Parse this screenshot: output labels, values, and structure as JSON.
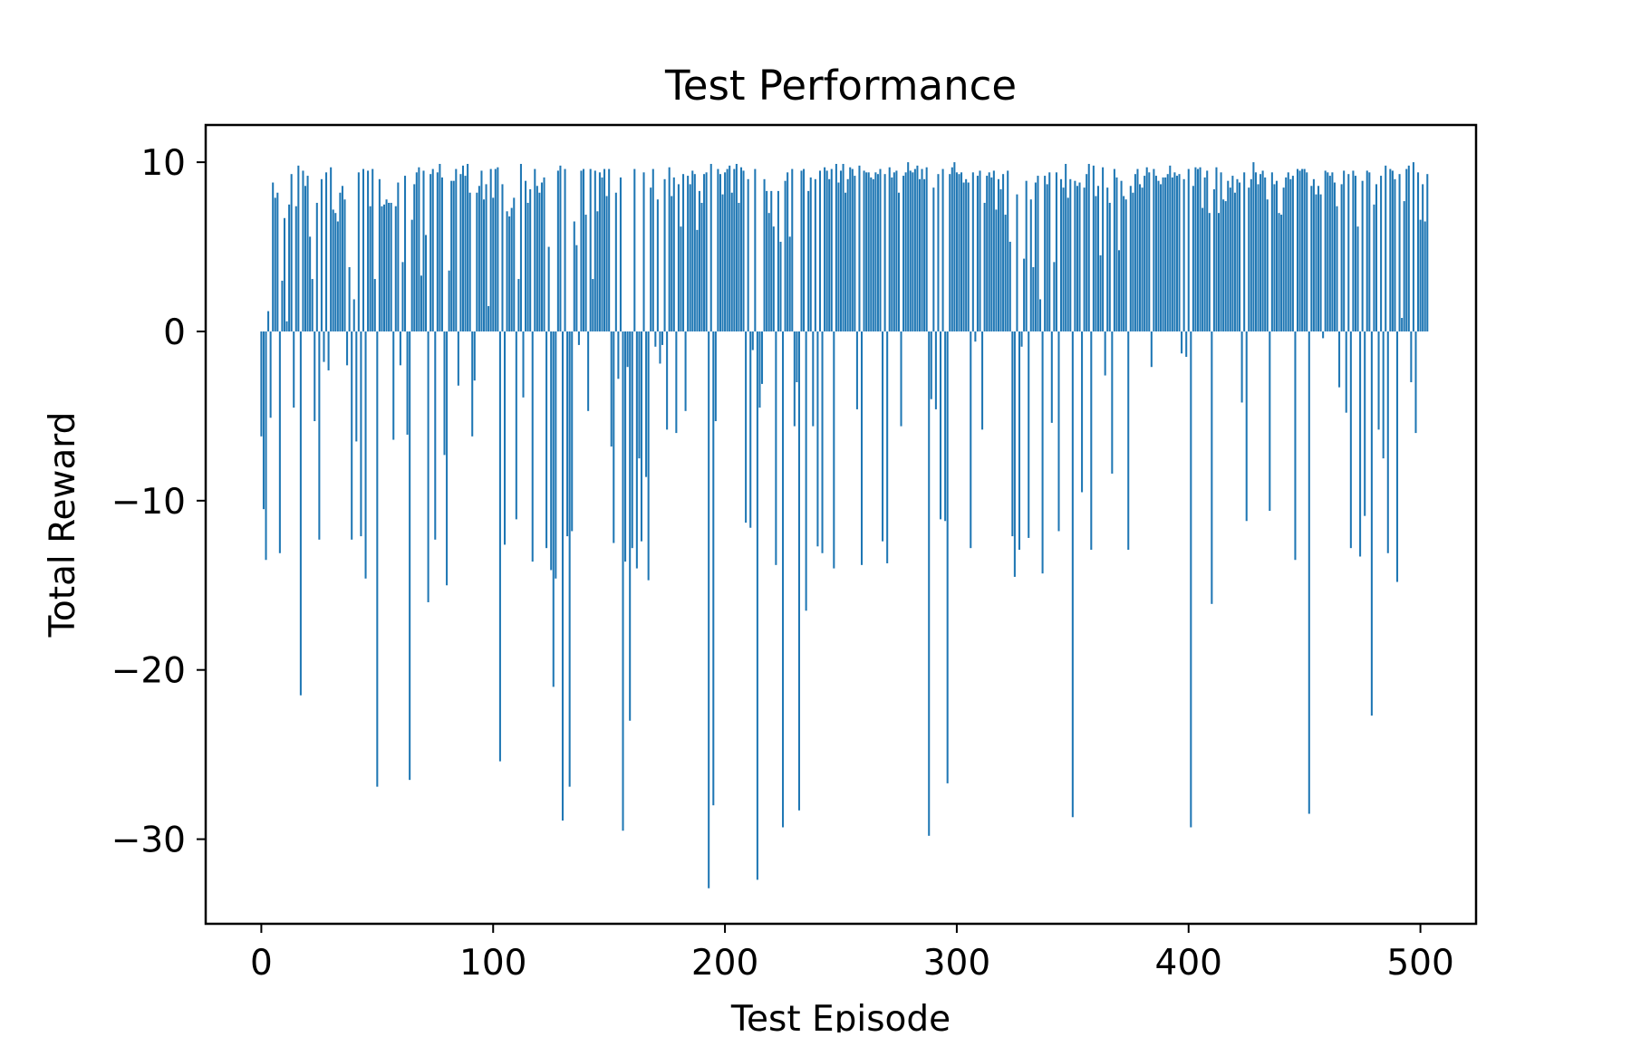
{
  "chart_data": {
    "type": "bar",
    "title": "Test Performance",
    "xlabel": "Test Episode",
    "ylabel": "Total Reward",
    "xlim": [
      -24,
      524
    ],
    "ylim": [
      -35,
      12.2
    ],
    "x_ticks": [
      0,
      100,
      200,
      300,
      400,
      500
    ],
    "y_ticks": [
      10,
      0,
      -10,
      -20,
      -30
    ],
    "x_tick_labels": [
      "0",
      "100",
      "200",
      "300",
      "400",
      "500"
    ],
    "y_tick_labels": [
      "10",
      "0",
      "−10",
      "−20",
      "−30"
    ],
    "grid": false,
    "legend": "none",
    "bar_color": "#1f77b4",
    "series": [
      {
        "x_start": 0,
        "x_step": 1,
        "values": [
          -6.2,
          -10.5,
          -13.5,
          1.2,
          -5.1,
          8.8,
          7.9,
          8.2,
          -13.1,
          3.0,
          6.7,
          0.6,
          7.5,
          9.3,
          -4.5,
          7.4,
          9.8,
          -21.5,
          9.5,
          8.6,
          9.2,
          5.6,
          3.1,
          -5.3,
          7.6,
          -12.3,
          9.0,
          -1.8,
          9.4,
          -2.3,
          9.7,
          7.2,
          7.0,
          6.5,
          8.2,
          8.6,
          7.8,
          -2.0,
          3.8,
          -12.3,
          1.9,
          -6.5,
          9.4,
          -12.1,
          9.6,
          -14.6,
          9.5,
          7.4,
          9.6,
          3.1,
          -26.9,
          9.0,
          7.4,
          7.5,
          7.8,
          7.6,
          7.6,
          -6.4,
          7.4,
          8.8,
          -2.0,
          4.1,
          9.2,
          -6.1,
          -26.5,
          6.6,
          8.7,
          9.4,
          9.7,
          3.3,
          9.5,
          5.7,
          -16.0,
          9.3,
          9.6,
          -12.3,
          9.4,
          9.9,
          9.1,
          -7.3,
          -15.0,
          3.6,
          8.9,
          8.9,
          9.6,
          -3.2,
          9.3,
          9.8,
          9.2,
          9.9,
          8.2,
          -6.2,
          -2.9,
          8.2,
          8.6,
          9.5,
          7.8,
          8.7,
          1.5,
          9.6,
          7.9,
          9.6,
          9.7,
          -25.4,
          8.7,
          -12.6,
          7.1,
          6.8,
          7.3,
          7.9,
          -11.1,
          3.1,
          9.9,
          -3.9,
          8.9,
          7.6,
          8.4,
          -13.6,
          9.6,
          8.6,
          8.2,
          8.8,
          9.1,
          -12.8,
          5.0,
          -14.1,
          -21.0,
          -14.6,
          9.5,
          9.8,
          -28.9,
          9.6,
          -12.1,
          -26.9,
          -11.8,
          6.5,
          5.1,
          -0.8,
          9.5,
          9.6,
          6.9,
          -4.7,
          9.6,
          3.1,
          9.5,
          7.1,
          9.4,
          9.1,
          9.6,
          8.0,
          9.6,
          -6.8,
          -12.5,
          8.2,
          -2.8,
          9.1,
          -29.5,
          -13.6,
          -2.1,
          -23.0,
          -12.8,
          9.6,
          -14.0,
          -7.5,
          -12.4,
          9.4,
          -8.6,
          -14.7,
          8.5,
          9.6,
          -0.9,
          7.8,
          -1.9,
          -0.8,
          9.0,
          -5.8,
          9.7,
          8.0,
          9.1,
          -6.0,
          8.7,
          6.2,
          9.3,
          -4.7,
          9.2,
          8.7,
          9.5,
          9.3,
          6.0,
          8.3,
          7.6,
          9.3,
          9.4,
          -32.9,
          9.9,
          -28.0,
          -5.3,
          9.6,
          9.3,
          8.1,
          9.4,
          9.6,
          9.8,
          8.2,
          9.6,
          9.9,
          7.6,
          9.7,
          9.5,
          -11.3,
          9.0,
          -11.6,
          -1.1,
          9.6,
          -32.4,
          -4.5,
          -3.1,
          9.0,
          8.3,
          7.0,
          8.3,
          6.2,
          -13.8,
          8.3,
          5.3,
          -29.3,
          8.9,
          9.4,
          5.6,
          9.6,
          -5.6,
          -3.0,
          -28.3,
          9.5,
          9.6,
          -16.5,
          8.3,
          9.1,
          -5.6,
          9.0,
          -12.7,
          9.5,
          -13.1,
          9.7,
          9.5,
          9.0,
          9.6,
          -14.0,
          9.9,
          8.8,
          9.5,
          9.9,
          8.2,
          9.0,
          9.7,
          9.6,
          9.2,
          -4.6,
          9.8,
          -13.8,
          9.5,
          9.4,
          9.4,
          9.1,
          9.0,
          9.4,
          9.3,
          9.6,
          -12.4,
          9.3,
          -13.7,
          9.7,
          9.1,
          9.4,
          9.5,
          8.2,
          -5.6,
          9.2,
          9.4,
          10.0,
          9.5,
          9.4,
          9.6,
          9.8,
          9.0,
          9.6,
          9.0,
          9.7,
          -29.8,
          -4.0,
          8.5,
          -4.6,
          9.3,
          -11.1,
          9.6,
          -11.2,
          -26.7,
          9.3,
          9.7,
          10.0,
          9.4,
          9.3,
          9.4,
          8.8,
          9.0,
          8.8,
          -12.8,
          9.4,
          -0.6,
          9.2,
          9.5,
          -5.8,
          7.6,
          9.2,
          9.4,
          9.1,
          9.5,
          7.2,
          9.0,
          8.4,
          9.3,
          6.9,
          9.5,
          5.3,
          -12.1,
          -14.5,
          8.1,
          -12.9,
          -0.9,
          4.3,
          8.9,
          -12.2,
          7.8,
          3.8,
          8.8,
          9.2,
          1.9,
          -14.3,
          9.2,
          8.7,
          9.4,
          -5.4,
          4.1,
          9.4,
          -11.8,
          9.0,
          8.5,
          9.9,
          7.9,
          9.0,
          -28.7,
          8.9,
          8.6,
          8.8,
          -9.5,
          8.5,
          9.3,
          9.9,
          -12.9,
          9.8,
          8.0,
          8.6,
          4.5,
          9.7,
          -2.6,
          8.5,
          7.6,
          -8.4,
          9.6,
          9.1,
          4.8,
          8.9,
          8.0,
          7.8,
          -12.9,
          8.6,
          8.2,
          9.3,
          9.6,
          8.7,
          8.5,
          9.2,
          9.7,
          9.4,
          -2.1,
          9.6,
          9.2,
          8.9,
          8.7,
          9.1,
          9.1,
          9.3,
          9.8,
          9.1,
          9.4,
          9.2,
          9.3,
          -1.3,
          9.0,
          -1.5,
          9.6,
          -29.3,
          8.6,
          9.7,
          9.6,
          9.7,
          7.3,
          9.1,
          9.5,
          7.0,
          -16.1,
          8.4,
          9.7,
          7.0,
          9.4,
          7.8,
          7.7,
          8.9,
          8.5,
          9.2,
          8.2,
          9.0,
          8.8,
          -4.2,
          9.4,
          -11.2,
          8.5,
          9.0,
          10.0,
          9.4,
          8.7,
          9.3,
          9.5,
          9.1,
          7.8,
          -10.6,
          9.4,
          8.7,
          8.9,
          7.0,
          6.9,
          8.5,
          9.1,
          9.4,
          9.0,
          9.2,
          -13.5,
          9.6,
          9.5,
          9.6,
          9.6,
          9.4,
          -28.5,
          8.6,
          9.0,
          8.1,
          8.6,
          8.1,
          -0.4,
          9.5,
          9.4,
          9.2,
          9.4,
          8.8,
          7.4,
          -3.3,
          8.7,
          9.5,
          -4.8,
          9.3,
          -12.8,
          9.5,
          9.2,
          6.2,
          -13.3,
          8.9,
          -10.9,
          9.5,
          9.4,
          -22.7,
          7.5,
          8.7,
          -5.8,
          9.2,
          -7.5,
          9.8,
          -13.1,
          9.6,
          9.5,
          9.0,
          -14.8,
          9.3,
          0.8,
          7.7,
          9.6,
          9.8,
          -3.0,
          10.0,
          -6.0,
          9.4,
          6.6,
          8.7,
          6.5,
          9.3
        ]
      }
    ]
  }
}
